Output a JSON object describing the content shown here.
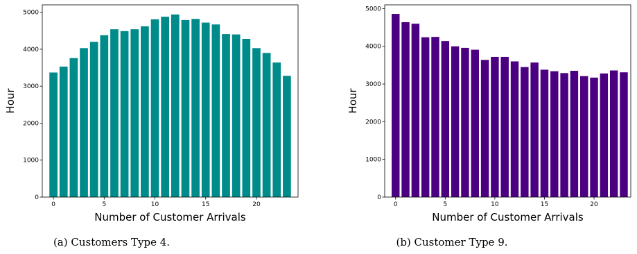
{
  "chart_data": [
    {
      "type": "bar",
      "xlabel": "Number of Customer Arrivals",
      "ylabel": "Hour",
      "caption": "(a) Customers Type 4.",
      "color": "#008b8b",
      "x": [
        0,
        1,
        2,
        3,
        4,
        5,
        6,
        7,
        8,
        9,
        10,
        11,
        12,
        13,
        14,
        15,
        16,
        17,
        18,
        19,
        20,
        21,
        22,
        23
      ],
      "values": [
        3370,
        3530,
        3760,
        4030,
        4200,
        4380,
        4540,
        4490,
        4540,
        4620,
        4810,
        4880,
        4940,
        4790,
        4820,
        4720,
        4670,
        4410,
        4400,
        4280,
        4030,
        3900,
        3640,
        3280
      ],
      "xticks": [
        "0",
        "5",
        "10",
        "15",
        "20"
      ],
      "yticks": [
        "0",
        "1000",
        "2000",
        "3000",
        "4000",
        "5000"
      ],
      "xlim": [
        -1.1,
        24.1
      ],
      "ylim": [
        0,
        5200
      ]
    },
    {
      "type": "bar",
      "xlabel": "Number of Customer Arrivals",
      "ylabel": "Hour",
      "caption": "(b) Customer Type 9.",
      "color": "#4b0082",
      "x": [
        0,
        1,
        2,
        3,
        4,
        5,
        6,
        7,
        8,
        9,
        10,
        11,
        12,
        13,
        14,
        15,
        16,
        17,
        18,
        19,
        20,
        21,
        22,
        23
      ],
      "values": [
        4860,
        4640,
        4600,
        4240,
        4250,
        4140,
        4000,
        3960,
        3910,
        3640,
        3720,
        3720,
        3600,
        3450,
        3570,
        3380,
        3340,
        3290,
        3350,
        3210,
        3170,
        3280,
        3360,
        3310
      ],
      "xticks": [
        "0",
        "5",
        "10",
        "15",
        "20"
      ],
      "yticks": [
        "0",
        "1000",
        "2000",
        "3000",
        "4000",
        "5000"
      ],
      "xlim": [
        -1.1,
        23.7
      ],
      "ylim": [
        0,
        5100
      ]
    }
  ]
}
